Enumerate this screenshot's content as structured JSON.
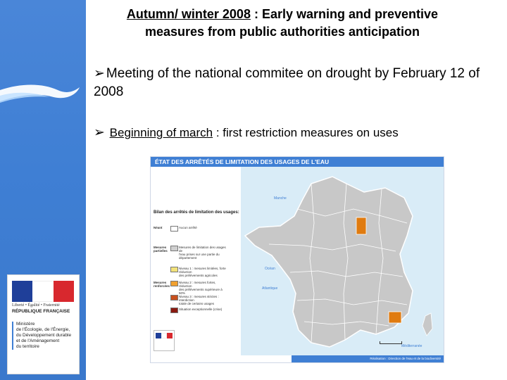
{
  "slide": {
    "title_underlined": "Autumn/ winter 2008",
    "title_rest": " : Early warning and preventive",
    "title_line2": "measures from public authorities anticipation",
    "bullet1": "Meeting of the national commitee on drought by February 12 of 2008",
    "bullet2_underlined": "Beginning of  march",
    "bullet2_rest": " : first restriction measures on uses"
  },
  "logo": {
    "motto": "Liberté • Égalité • Fraternité",
    "republic": "RÉPUBLIQUE FRANÇAISE",
    "ministry": "Ministère\nde l'Écologie, de l'Énergie,\ndu Développement durable\net de l'Aménagement\ndu territoire",
    "flag_colors": [
      "#1f3f99",
      "#ffffff",
      "#d8282e"
    ]
  },
  "map": {
    "header": "ÉTAT DES ARRÊTÉS DE LIMITATION DES USAGES DE L'EAU",
    "legend_title": "Bilan des arrêtés de limitation des usages:",
    "legend": [
      {
        "category": "Néant",
        "color": "#ffffff",
        "text": "Aucun arrêté"
      },
      {
        "category": "Mesures partielles",
        "color": "#cfcfcf",
        "text": "Mesures de limitation des usages de\nl'eau prises sur une partie du département"
      },
      {
        "category": "",
        "color": "#f2e27a",
        "text": "Niveau 1 : mesures limitées, forte réduction\ndes prélèvements agricoles"
      },
      {
        "category": "Mesures renforcées",
        "color": "#f0a030",
        "text": "Niveau 2 : mesures fortes, réduction\ndes prélèvements supérieure à 50%"
      },
      {
        "category": "",
        "color": "#c8501e",
        "text": "Niveau 3 : mesures strictes : interdiction\ntotale de certains usages"
      },
      {
        "category": "",
        "color": "#8a1a10",
        "text": "Situation exceptionnelle (crise)"
      }
    ],
    "sea_labels": [
      "Manche",
      "Océan",
      "Atlantique",
      "Méditerranée"
    ],
    "footer": "Réalisation : Direction de l'eau et de la biodiversité",
    "colors": {
      "land": "#c8c8c8",
      "border": "#ffffff",
      "highlight": "#e07b10"
    }
  }
}
